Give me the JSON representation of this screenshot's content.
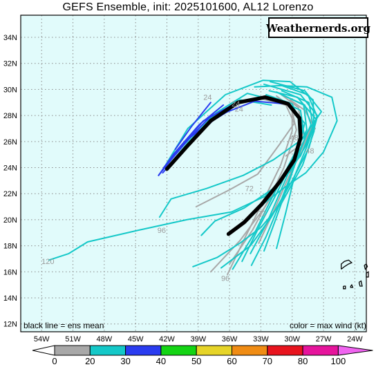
{
  "title": "GEFS Ensemble, init: 2025101600, AL12 Lorenzo",
  "watermark": "Weathernerds.org",
  "footer": {
    "left": "black line = ens mean",
    "right": "color = max wind (kt)"
  },
  "lat_labels": [
    "34N",
    "32N",
    "30N",
    "28N",
    "26N",
    "24N",
    "22N",
    "20N",
    "18N",
    "16N",
    "14N",
    "12N"
  ],
  "lon_labels": [
    "54W",
    "51W",
    "48W",
    "45W",
    "42W",
    "39W",
    "36W",
    "33W",
    "30W",
    "27W",
    "24W"
  ],
  "map": {
    "ocean_color": "#e1fbfb",
    "grid_style": "dotted",
    "lon_range": [
      -56,
      -22.9
    ],
    "lat_range": [
      11.4,
      35.7
    ]
  },
  "colorbar": {
    "ticks": [
      "0",
      "20",
      "30",
      "40",
      "50",
      "60",
      "70",
      "80",
      "100"
    ],
    "colors": [
      "#a8a8a8",
      "#14c8c8",
      "#2a3cf0",
      "#14d414",
      "#e6d428",
      "#f08c14",
      "#e8141e",
      "#e6149c",
      "#f064f0"
    ]
  },
  "tracks": [
    {
      "color": "#a8a8a8",
      "points": [
        [
          -36.2,
          15.8
        ],
        [
          -34.6,
          18.5
        ],
        [
          -32.8,
          21.4
        ],
        [
          -31.1,
          24.2
        ],
        [
          -30.0,
          26.8
        ],
        [
          -30.0,
          28.6
        ],
        [
          -31.5,
          29.5
        ]
      ]
    },
    {
      "color": "#a8a8a8",
      "points": [
        [
          -37.8,
          16.0
        ],
        [
          -35.0,
          18.4
        ],
        [
          -32.6,
          21.0
        ],
        [
          -30.4,
          23.8
        ],
        [
          -29.0,
          26.6
        ],
        [
          -29.4,
          28.6
        ],
        [
          -31.2,
          29.7
        ]
      ]
    },
    {
      "color": "#a8a8a8",
      "points": [
        [
          -36.0,
          16.6
        ],
        [
          -33.8,
          19.2
        ],
        [
          -32.2,
          21.6
        ],
        [
          -30.8,
          24.0
        ],
        [
          -29.6,
          26.9
        ],
        [
          -30.2,
          29.0
        ]
      ]
    },
    {
      "color": "#a8a8a8",
      "points": [
        [
          -39.2,
          21.0
        ],
        [
          -36.0,
          22.3
        ],
        [
          -33.3,
          23.5
        ],
        [
          -31.2,
          25.8
        ],
        [
          -29.8,
          27.4
        ],
        [
          -30.6,
          28.8
        ],
        [
          -33.0,
          29.3
        ]
      ]
    },
    {
      "color": "#a8a8a8",
      "points": [
        [
          -33.2,
          18.2
        ],
        [
          -31.8,
          20.6
        ],
        [
          -30.5,
          23.0
        ],
        [
          -29.1,
          25.4
        ],
        [
          -28.0,
          27.4
        ]
      ]
    },
    {
      "color": "#a8a8a8",
      "points": [
        [
          -30.6,
          24.9
        ],
        [
          -29.1,
          25.8
        ],
        [
          -27.8,
          27.0
        ],
        [
          -28.8,
          28.4
        ],
        [
          -30.2,
          29.2
        ]
      ]
    },
    {
      "color": "#14c8c8",
      "points": [
        [
          -36.8,
          16.3
        ],
        [
          -34.0,
          18.0
        ],
        [
          -32.0,
          20.2
        ],
        [
          -30.0,
          23.0
        ],
        [
          -28.4,
          25.5
        ],
        [
          -27.6,
          27.9
        ],
        [
          -28.5,
          29.6
        ],
        [
          -31.0,
          30.3
        ],
        [
          -33.6,
          30.2
        ]
      ]
    },
    {
      "color": "#14c8c8",
      "points": [
        [
          -35.7,
          16.2
        ],
        [
          -33.6,
          19.0
        ],
        [
          -31.8,
          21.9
        ],
        [
          -30.2,
          24.4
        ],
        [
          -28.6,
          26.9
        ],
        [
          -28.9,
          28.8
        ],
        [
          -31.5,
          29.8
        ]
      ]
    },
    {
      "color": "#14c8c8",
      "points": [
        [
          -34.8,
          16.8
        ],
        [
          -33.2,
          19.4
        ],
        [
          -31.5,
          22.0
        ],
        [
          -30.0,
          24.5
        ],
        [
          -29.0,
          27.0
        ],
        [
          -30.0,
          28.9
        ],
        [
          -32.5,
          29.6
        ]
      ]
    },
    {
      "color": "#14c8c8",
      "points": [
        [
          -34.0,
          17.4
        ],
        [
          -32.4,
          19.8
        ],
        [
          -30.9,
          22.6
        ],
        [
          -29.6,
          25.0
        ],
        [
          -28.8,
          27.4
        ],
        [
          -30.4,
          29.0
        ]
      ]
    },
    {
      "color": "#14c8c8",
      "points": [
        [
          -32.7,
          17.6
        ],
        [
          -31.5,
          20.2
        ],
        [
          -30.3,
          22.9
        ],
        [
          -29.3,
          25.3
        ],
        [
          -28.2,
          27.3
        ],
        [
          -28.8,
          28.8
        ],
        [
          -31.0,
          29.6
        ]
      ]
    },
    {
      "color": "#14c8c8",
      "points": [
        [
          -31.5,
          17.8
        ],
        [
          -30.6,
          20.6
        ],
        [
          -29.8,
          23.3
        ],
        [
          -28.6,
          25.6
        ],
        [
          -27.7,
          27.7
        ],
        [
          -29.5,
          29.4
        ],
        [
          -32.2,
          29.9
        ]
      ]
    },
    {
      "color": "#14c8c8",
      "points": [
        [
          -33.9,
          16.5
        ],
        [
          -32.5,
          18.7
        ],
        [
          -31.2,
          21.2
        ],
        [
          -29.9,
          23.9
        ],
        [
          -28.8,
          26.2
        ],
        [
          -29.2,
          28.4
        ],
        [
          -31.8,
          29.4
        ]
      ]
    },
    {
      "color": "#14c8c8",
      "points": [
        [
          -38.7,
          18.8
        ],
        [
          -37.4,
          19.9
        ],
        [
          -34.6,
          20.9
        ],
        [
          -31.8,
          22.4
        ],
        [
          -29.2,
          24.9
        ],
        [
          -28.0,
          27.2
        ],
        [
          -28.4,
          29.0
        ],
        [
          -31.0,
          29.9
        ]
      ]
    },
    {
      "color": "#14c8c8",
      "points": [
        [
          -42.7,
          20.2
        ],
        [
          -41.6,
          21.6
        ],
        [
          -38.2,
          22.4
        ],
        [
          -34.7,
          23.4
        ],
        [
          -31.8,
          24.6
        ],
        [
          -29.0,
          26.2
        ],
        [
          -27.2,
          28.3
        ],
        [
          -28.8,
          29.9
        ],
        [
          -32.1,
          30.6
        ]
      ]
    },
    {
      "color": "#14c8c8",
      "points": [
        [
          -53.3,
          16.9
        ],
        [
          -51.4,
          17.4
        ],
        [
          -49.6,
          18.3
        ],
        [
          -44.7,
          19.2
        ],
        [
          -40.1,
          20.0
        ],
        [
          -35.8,
          20.6
        ],
        [
          -32.6,
          21.8
        ],
        [
          -30.2,
          23.7
        ],
        [
          -28.6,
          25.8
        ],
        [
          -27.6,
          28.0
        ],
        [
          -29.2,
          29.6
        ],
        [
          -32.7,
          30.4
        ]
      ]
    },
    {
      "color": "#14c8c8",
      "points": [
        [
          -39.5,
          16.4
        ],
        [
          -37.2,
          17.1
        ],
        [
          -35.0,
          18.2
        ],
        [
          -33.0,
          19.4
        ],
        [
          -31.0,
          21.3
        ],
        [
          -29.0,
          24.2
        ],
        [
          -27.9,
          26.8
        ],
        [
          -28.0,
          29.2
        ],
        [
          -30.2,
          30.6
        ],
        [
          -32.8,
          30.7
        ],
        [
          -36.4,
          29.6
        ],
        [
          -40.0,
          27.0
        ],
        [
          -42.2,
          24.1
        ]
      ]
    },
    {
      "color": "#14c8c8",
      "points": [
        [
          -34.6,
          19.8
        ],
        [
          -32.8,
          21.2
        ],
        [
          -30.7,
          22.5
        ],
        [
          -28.7,
          23.6
        ],
        [
          -27.0,
          25.2
        ],
        [
          -25.7,
          27.6
        ],
        [
          -26.2,
          29.4
        ],
        [
          -28.6,
          30.2
        ],
        [
          -31.2,
          30.3
        ]
      ]
    },
    {
      "color": "#14c8c8",
      "points": [
        [
          -31.3,
          29.1
        ],
        [
          -34.3,
          29.7
        ],
        [
          -37.3,
          28.2
        ],
        [
          -40.0,
          25.9
        ],
        [
          -42.0,
          24.0
        ]
      ]
    },
    {
      "color": "#14c8c8",
      "points": [
        [
          -32.0,
          28.8
        ],
        [
          -35.0,
          29.2
        ],
        [
          -38.2,
          27.6
        ],
        [
          -40.8,
          25.4
        ],
        [
          -42.4,
          23.8
        ]
      ]
    },
    {
      "color": "#2a3cf0",
      "points": [
        [
          -30.7,
          28.9
        ],
        [
          -33.6,
          29.1
        ],
        [
          -37.1,
          28.0
        ],
        [
          -40.2,
          25.6
        ],
        [
          -42.4,
          23.6
        ]
      ]
    },
    {
      "color": "#2a3cf0",
      "points": [
        [
          -36.6,
          28.8
        ],
        [
          -38.9,
          27.3
        ],
        [
          -41.4,
          25.0
        ],
        [
          -42.8,
          23.4
        ]
      ]
    },
    {
      "color": "#2a3cf0",
      "points": [
        [
          -37.5,
          28.2
        ],
        [
          -39.8,
          26.3
        ],
        [
          -41.9,
          24.4
        ],
        [
          -42.6,
          23.6
        ]
      ]
    },
    {
      "color": "#2a3cf0",
      "points": [
        [
          -35.3,
          29.0
        ],
        [
          -38.5,
          27.6
        ],
        [
          -41.0,
          25.3
        ],
        [
          -42.3,
          24.0
        ]
      ]
    },
    {
      "color": "#2a3cf0",
      "points": [
        [
          -37.8,
          29.0
        ],
        [
          -39.6,
          27.2
        ],
        [
          -41.2,
          25.4
        ]
      ]
    },
    {
      "color": "#2a3cf0",
      "points": [
        [
          -36.0,
          28.4
        ],
        [
          -38.0,
          27.4
        ],
        [
          -39.8,
          26.3
        ],
        [
          -41.6,
          24.6
        ],
        [
          -42.8,
          23.4
        ]
      ]
    }
  ],
  "mean_track": [
    [
      -36.1,
      18.9
    ],
    [
      -34.6,
      19.8
    ],
    [
      -32.9,
      21.2
    ],
    [
      -31.2,
      22.9
    ],
    [
      -29.8,
      24.6
    ],
    [
      -29.2,
      26.3
    ],
    [
      -29.3,
      27.8
    ],
    [
      -30.4,
      28.9
    ],
    [
      -32.6,
      29.4
    ],
    [
      -35.2,
      29.0
    ],
    [
      -37.8,
      27.6
    ],
    [
      -40.0,
      25.7
    ],
    [
      -42.0,
      23.9
    ]
  ],
  "hour_labels": [
    {
      "text": "120",
      "lon": -53.4,
      "lat": 16.6
    },
    {
      "text": "96",
      "lon": -42.5,
      "lat": 19.0
    },
    {
      "text": "96",
      "lon": -36.4,
      "lat": 15.3
    },
    {
      "text": "72",
      "lon": -34.1,
      "lat": 22.2
    },
    {
      "text": "72",
      "lon": -32.9,
      "lat": 20.3
    },
    {
      "text": "48",
      "lon": -29.8,
      "lat": 26.1
    },
    {
      "text": "48",
      "lon": -28.3,
      "lat": 25.1
    },
    {
      "text": "24",
      "lon": -38.1,
      "lat": 29.2
    },
    {
      "text": "24",
      "lon": -35.1,
      "lat": 28.3
    },
    {
      "text": "24",
      "lon": -35.4,
      "lat": 28.7
    }
  ],
  "islands": [
    {
      "points": [
        [
          -25.3,
          16.2
        ],
        [
          -25.0,
          16.4
        ],
        [
          -24.6,
          16.6
        ],
        [
          -24.3,
          16.7
        ],
        [
          -24.6,
          16.9
        ],
        [
          -25.0,
          16.8
        ],
        [
          -25.3,
          16.6
        ],
        [
          -25.3,
          16.2
        ]
      ]
    },
    {
      "points": [
        [
          -23.1,
          16.5
        ],
        [
          -22.9,
          16.6
        ],
        [
          -22.8,
          16.4
        ],
        [
          -23.0,
          16.2
        ],
        [
          -23.1,
          16.5
        ]
      ]
    },
    {
      "points": [
        [
          -22.9,
          15.9
        ],
        [
          -22.7,
          16.0
        ],
        [
          -22.7,
          15.6
        ],
        [
          -22.9,
          15.6
        ],
        [
          -22.9,
          15.9
        ]
      ]
    },
    {
      "points": [
        [
          -24.4,
          14.9
        ],
        [
          -24.3,
          15.0
        ],
        [
          -24.2,
          14.8
        ],
        [
          -24.4,
          14.8
        ],
        [
          -24.4,
          14.9
        ]
      ]
    },
    {
      "points": [
        [
          -23.6,
          15.2
        ],
        [
          -23.4,
          15.3
        ],
        [
          -23.3,
          14.9
        ],
        [
          -23.5,
          14.9
        ],
        [
          -23.6,
          15.2
        ]
      ]
    },
    {
      "points": [
        [
          -25.1,
          14.9
        ],
        [
          -24.9,
          14.9
        ],
        [
          -24.9,
          14.7
        ],
        [
          -25.1,
          14.7
        ],
        [
          -25.1,
          14.9
        ]
      ]
    }
  ]
}
